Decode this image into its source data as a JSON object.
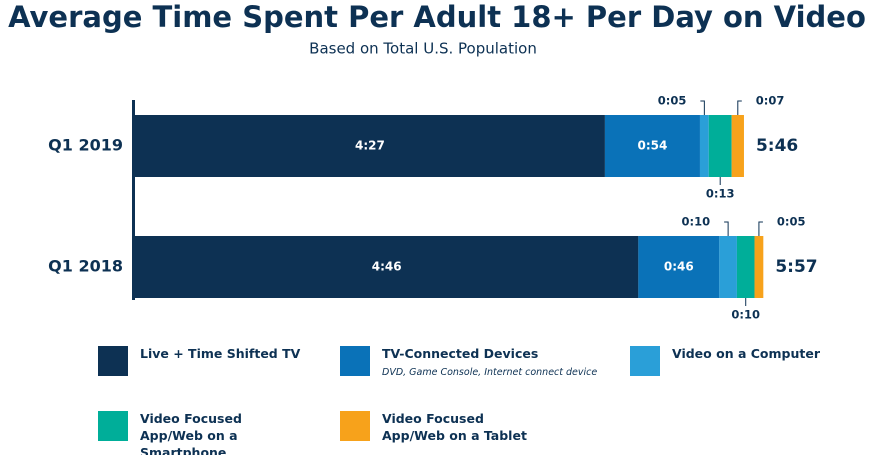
{
  "chart_data": {
    "type": "stacked-bar",
    "orientation": "horizontal",
    "title": "Average Time Spent Per Adult 18+ Per Day on Video",
    "subtitle": "Based on Total U.S. Population",
    "categories": [
      "Q1 2019",
      "Q1 2018"
    ],
    "series": [
      {
        "name": "Live + Time Shifted TV",
        "color": "#0d3153",
        "values": [
          267,
          286
        ],
        "value_labels": [
          "4:27",
          "4:46"
        ]
      },
      {
        "name": "TV-Connected Devices",
        "description": "DVD, Game Console, Internet connect device",
        "color": "#0a72b8",
        "values": [
          54,
          46
        ],
        "value_labels": [
          "0:54",
          "0:46"
        ]
      },
      {
        "name": "Video on a Computer",
        "color": "#2a9fd8",
        "values": [
          5,
          10
        ],
        "value_labels": [
          "0:05",
          "0:10"
        ]
      },
      {
        "name": "Video Focused App/Web on a Smartphone",
        "color": "#00ae99",
        "values": [
          13,
          10
        ],
        "value_labels": [
          "0:13",
          "0:10"
        ]
      },
      {
        "name": "Video Focused App/Web on a Tablet",
        "color": "#f7a21b",
        "values": [
          7,
          5
        ],
        "value_labels": [
          "0:07",
          "0:05"
        ]
      }
    ],
    "totals": [
      346,
      357
    ],
    "total_labels": [
      "5:46",
      "5:57"
    ]
  }
}
